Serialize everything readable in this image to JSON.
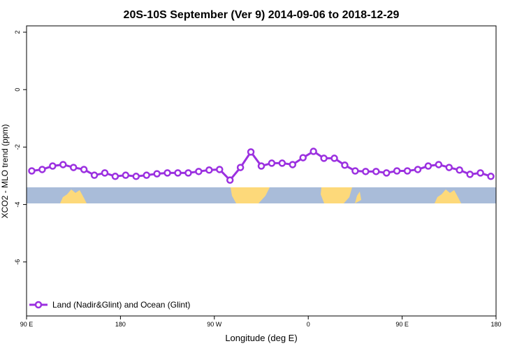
{
  "chart_data": {
    "type": "line",
    "title": "20S-10S September (Ver 9)   2014-09-06 to 2018-12-29",
    "xlabel": "Longitude (deg E)",
    "ylabel": "XCO2 - MLO trend (ppm)",
    "x": [
      95,
      105,
      115,
      125,
      135,
      145,
      155,
      165,
      175,
      185,
      195,
      205,
      215,
      225,
      235,
      245,
      255,
      265,
      275,
      285,
      295,
      305,
      315,
      325,
      335,
      345,
      355,
      365,
      375,
      385,
      395,
      405,
      415,
      425,
      435,
      445,
      455,
      465,
      475,
      485,
      495,
      505,
      515,
      525,
      535
    ],
    "series": [
      {
        "name": "Land (Nadir&Glint) and Ocean (Glint)",
        "color": "#9b30e0",
        "values": [
          -2.83,
          -2.78,
          -2.66,
          -2.61,
          -2.71,
          -2.78,
          -2.98,
          -2.9,
          -3.02,
          -2.98,
          -3.02,
          -2.98,
          -2.93,
          -2.9,
          -2.9,
          -2.9,
          -2.85,
          -2.8,
          -2.78,
          -3.15,
          -2.71,
          -2.17,
          -2.66,
          -2.56,
          -2.56,
          -2.61,
          -2.37,
          -2.15,
          -2.39,
          -2.39,
          -2.63,
          -2.83,
          -2.85,
          -2.85,
          -2.9,
          -2.83,
          -2.83,
          -2.78,
          -2.66,
          -2.61,
          -2.71,
          -2.8,
          -2.95,
          -2.9,
          -3.02
        ]
      }
    ],
    "xlim": [
      90,
      540
    ],
    "xticks": [
      {
        "value": 90,
        "label": "90 E"
      },
      180,
      {
        "value": 270,
        "label": "90 W"
      },
      {
        "value": 360,
        "label": "0"
      },
      {
        "value": 450,
        "label": "90 E"
      },
      {
        "value": 540,
        "label": "180"
      }
    ],
    "ylim": [
      -7.88,
      2.22
    ],
    "yticks": [
      2,
      0,
      -2,
      -4,
      -6
    ],
    "legend": "bottom-left"
  }
}
